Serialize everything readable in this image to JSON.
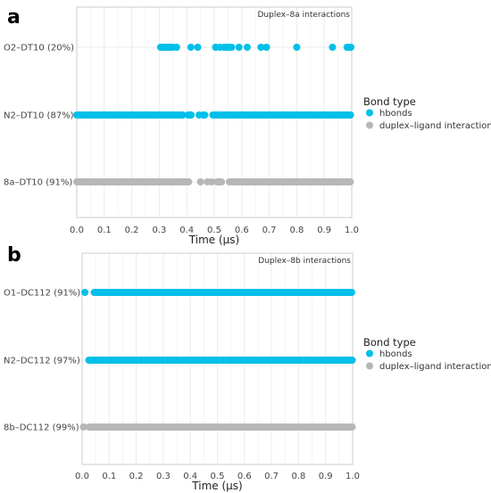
{
  "chart_data": [
    {
      "type": "scatter",
      "panel_label": "a",
      "title": "Duplex–8a interactions",
      "xlabel": "Time (μs)",
      "xlim": [
        0.0,
        1.0
      ],
      "x_ticks": [
        "0.0",
        "0.1",
        "0.2",
        "0.3",
        "0.4",
        "0.5",
        "0.6",
        "0.7",
        "0.8",
        "0.9",
        "1.0"
      ],
      "grid": true,
      "legend": {
        "title": "Bond type",
        "position": "right",
        "entries": [
          {
            "label": "hbonds",
            "color": "#00bfe8"
          },
          {
            "label": "duplex–ligand interactions",
            "color": "#b7b7b7"
          }
        ]
      },
      "rows": [
        {
          "label": "O2–DT10 (20%)",
          "bond_type": "hbonds",
          "intervals": [
            [
              0.305,
              0.35
            ]
          ],
          "points": [
            0.363,
            0.415,
            0.44,
            0.505,
            0.52,
            0.535,
            0.545,
            0.553,
            0.563,
            0.59,
            0.62,
            0.67,
            0.69,
            0.8,
            0.93,
            0.983,
            0.99,
            0.997
          ]
        },
        {
          "label": "N2–DT10 (87%)",
          "bond_type": "hbonds",
          "intervals": [
            [
              0.0,
              0.39
            ],
            [
              0.405,
              0.42
            ],
            [
              0.46,
              0.47
            ],
            [
              0.495,
              1.0
            ]
          ],
          "points": [
            0.445
          ]
        },
        {
          "label": "8a–DT10 (91%)",
          "bond_type": "duplex–ligand interactions",
          "intervals": [
            [
              0.0,
              0.32
            ],
            [
              0.33,
              0.41
            ],
            [
              0.51,
              0.53
            ],
            [
              0.555,
              1.0
            ]
          ],
          "points": [
            0.45,
            0.475,
            0.49
          ]
        }
      ]
    },
    {
      "type": "scatter",
      "panel_label": "b",
      "title": "Duplex–8b interactions",
      "xlabel": "Time (μs)",
      "xlim": [
        0.0,
        1.0
      ],
      "x_ticks": [
        "0.0",
        "0.1",
        "0.2",
        "0.3",
        "0.4",
        "0.5",
        "0.6",
        "0.7",
        "0.8",
        "0.9",
        "1.0"
      ],
      "grid": true,
      "legend": {
        "title": "Bond type",
        "position": "right",
        "entries": [
          {
            "label": "hbonds",
            "color": "#00bfe8"
          },
          {
            "label": "duplex–ligand interactions",
            "color": "#b7b7b7"
          }
        ]
      },
      "rows": [
        {
          "label": "O1–DC112 (91%)",
          "bond_type": "hbonds",
          "intervals": [
            [
              0.045,
              1.0
            ]
          ],
          "points": [
            0.01
          ]
        },
        {
          "label": "N2–DC112 (97%)",
          "bond_type": "hbonds",
          "intervals": [
            [
              0.025,
              1.0
            ]
          ],
          "points": []
        },
        {
          "label": "8b–DC112 (99%)",
          "bond_type": "duplex–ligand interactions",
          "intervals": [
            [
              0.025,
              1.0
            ]
          ],
          "points": [
            0.005
          ]
        }
      ]
    }
  ]
}
